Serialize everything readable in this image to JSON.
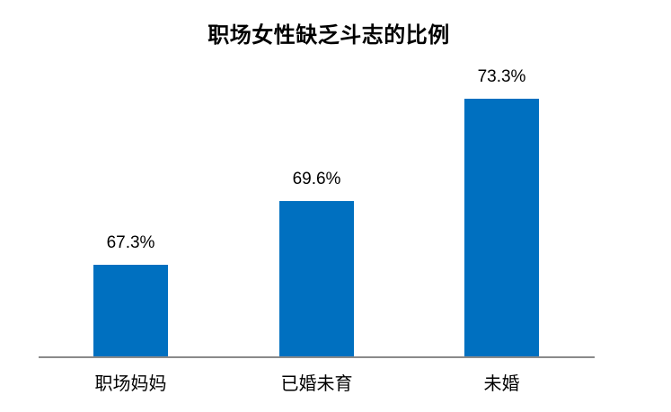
{
  "title": "职场女性缺乏斗志的比例",
  "chart_data": {
    "type": "bar",
    "title": "职场女性缺乏斗志的比例",
    "categories": [
      "职场妈妈",
      "已婚未育",
      "未婚"
    ],
    "values": [
      67.3,
      69.6,
      73.3
    ],
    "value_labels": [
      "67.3%",
      "69.6%",
      "73.3%"
    ],
    "xlabel": "",
    "ylabel": "",
    "ylim": [
      64,
      74
    ],
    "grid": false,
    "legend": false,
    "y_axis_visible": false,
    "bar_color": "#0070C0",
    "axis_line_color": "#8a8a8a",
    "text_color": "#000000",
    "background_color": "#ffffff"
  }
}
